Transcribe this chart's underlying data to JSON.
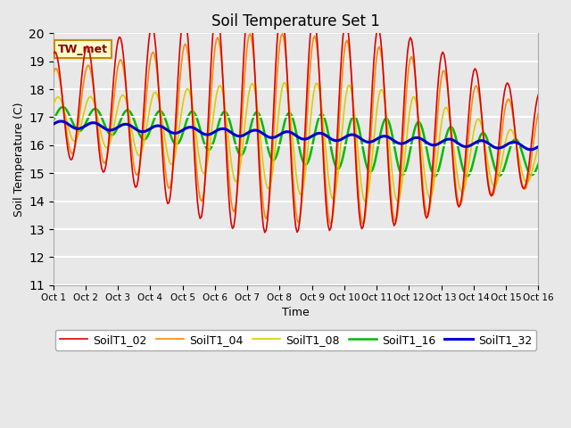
{
  "title": "Soil Temperature Set 1",
  "xlabel": "Time",
  "ylabel": "Soil Temperature (C)",
  "ylim": [
    11.0,
    20.0
  ],
  "yticks": [
    11.0,
    12.0,
    13.0,
    14.0,
    15.0,
    16.0,
    17.0,
    18.0,
    19.0,
    20.0
  ],
  "annotation": "TW_met",
  "colors": {
    "SoilT1_02": "#dd0000",
    "SoilT1_04": "#ff8800",
    "SoilT1_08": "#ddcc00",
    "SoilT1_16": "#00bb00",
    "SoilT1_32": "#0000cc"
  },
  "line_widths": {
    "SoilT1_02": 1.2,
    "SoilT1_04": 1.2,
    "SoilT1_08": 1.2,
    "SoilT1_16": 1.8,
    "SoilT1_32": 2.2
  },
  "legend_labels": [
    "SoilT1_02",
    "SoilT1_04",
    "SoilT1_08",
    "SoilT1_16",
    "SoilT1_32"
  ],
  "xtick_labels": [
    "Oct 1",
    "Oct 2",
    "Oct 3",
    "Oct 4",
    "Oct 5",
    "Oct 6",
    "Oct 7",
    "Oct 8",
    "Oct 9",
    "Oct 10",
    "Oct 11",
    "Oct 12",
    "Oct 13",
    "Oct 14",
    "Oct 15",
    "Oct 16"
  ],
  "fig_bg": "#e8e8e8",
  "plot_bg": "#e8e8e8",
  "grid_color": "#ffffff"
}
